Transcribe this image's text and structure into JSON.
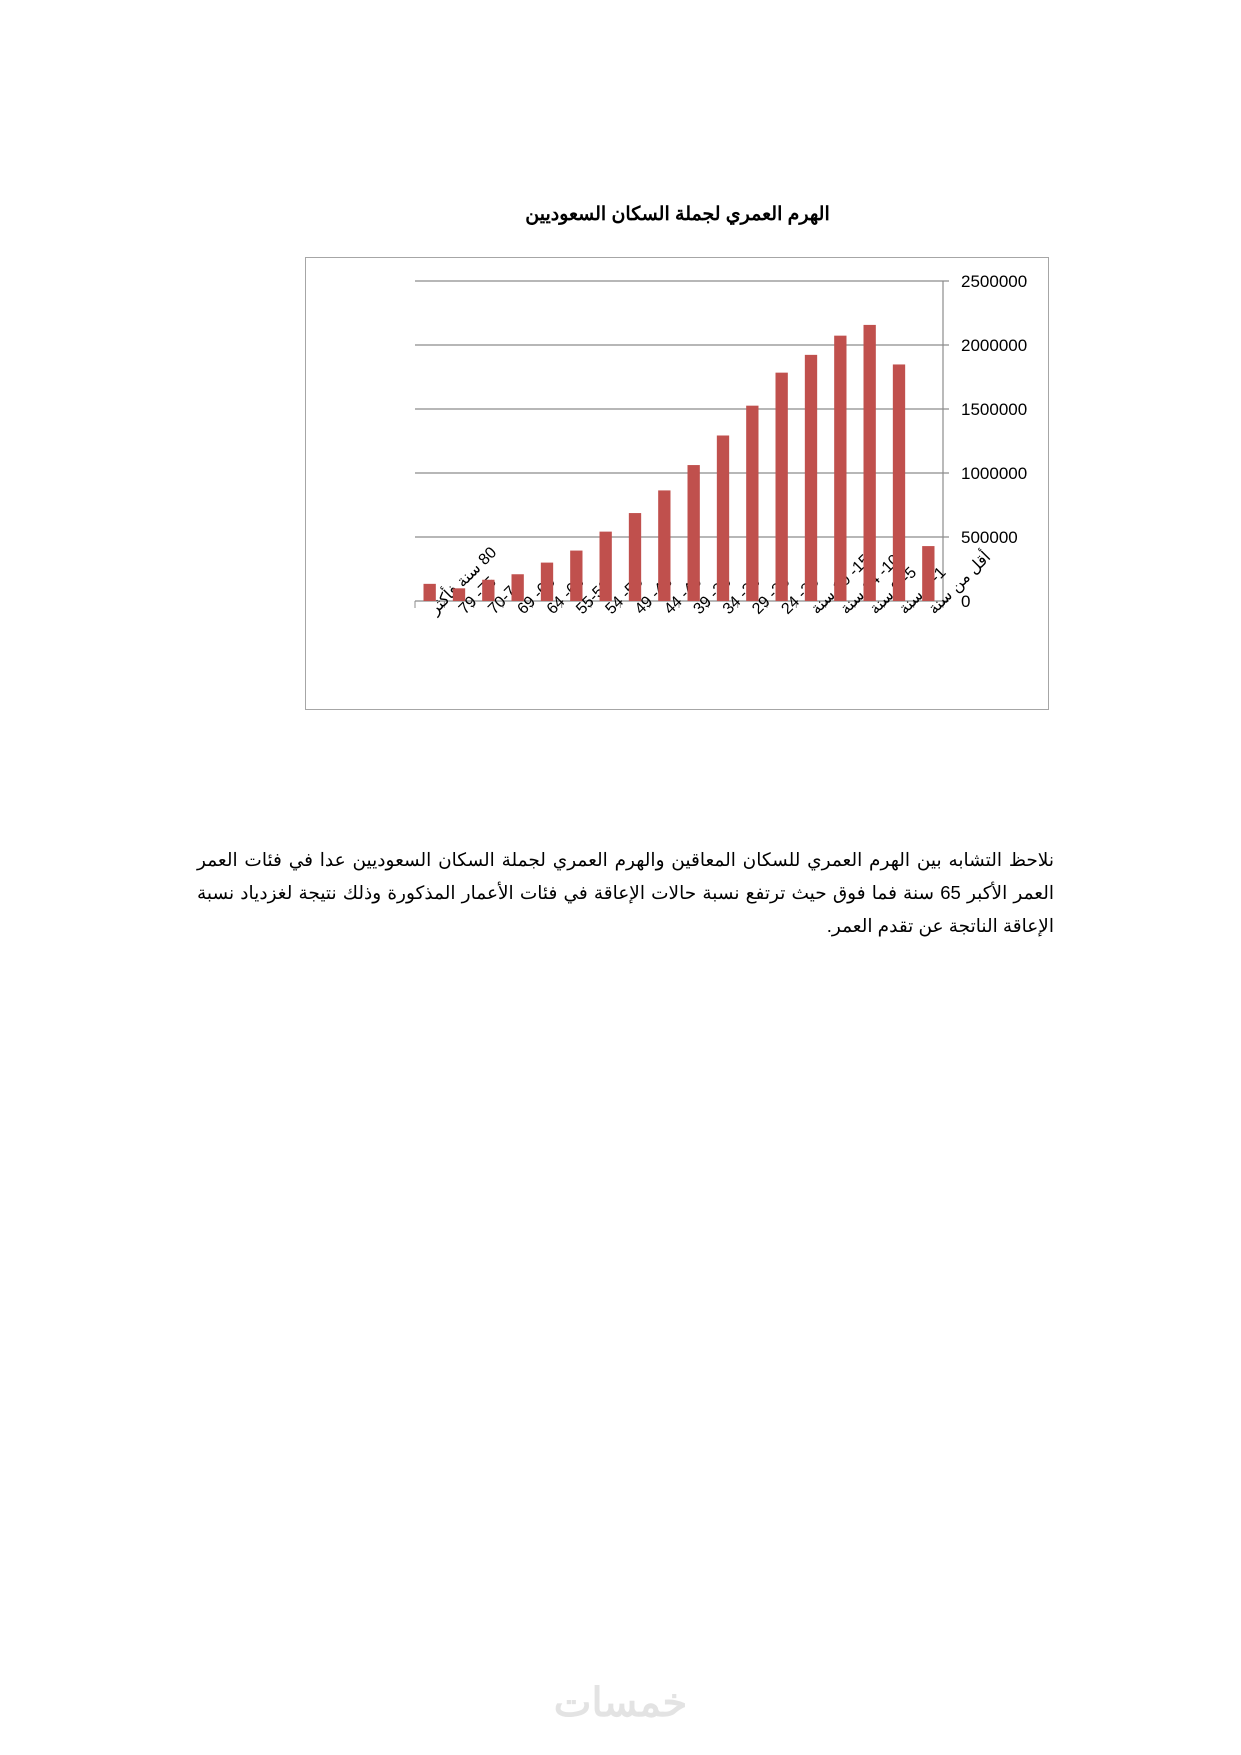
{
  "chart_data": {
    "type": "bar",
    "title": "الهرم العمري لجملة السكان السعوديين",
    "categories": [
      "80 سنة فأكثر",
      "75- 79",
      "70-74",
      "65- 69",
      "60- 64",
      "55-59",
      "50- 54",
      "45- 49",
      "40- 44",
      "35- 39",
      "30- 34",
      "25- 29",
      "20- 24",
      "15- 19 سنة",
      "10- 14 سنة",
      "5- 9 سنة",
      "1- 4 سنة",
      "أقل من سنة"
    ],
    "values": [
      134000,
      99000,
      166000,
      209000,
      300000,
      394000,
      542000,
      687000,
      864000,
      1062000,
      1293000,
      1526000,
      1784000,
      1923000,
      2073000,
      2157000,
      1848000,
      429000
    ],
    "ylim": [
      0,
      2500000
    ],
    "yticks": [
      "0",
      "500000",
      "1000000",
      "1500000",
      "2000000",
      "2500000"
    ],
    "y_axis_side": "right",
    "grid": true,
    "legend": "none",
    "bar_color": "#c0504d"
  },
  "paragraph": {
    "text": "نلاحظ التشابه بين الهرم العمري للسكان المعاقين والهرم العمري لجملة السكان السعوديين عدا في فئات العمر العمر الأكبر 65 سنة فما فوق حيث ترتفع نسبة حالات الإعاقة في فئات الأعمار المذكورة وذلك نتيجة لغزدياد نسبة الإعاقة الناتجة عن تقدم العمر."
  },
  "watermark": "خمسات"
}
